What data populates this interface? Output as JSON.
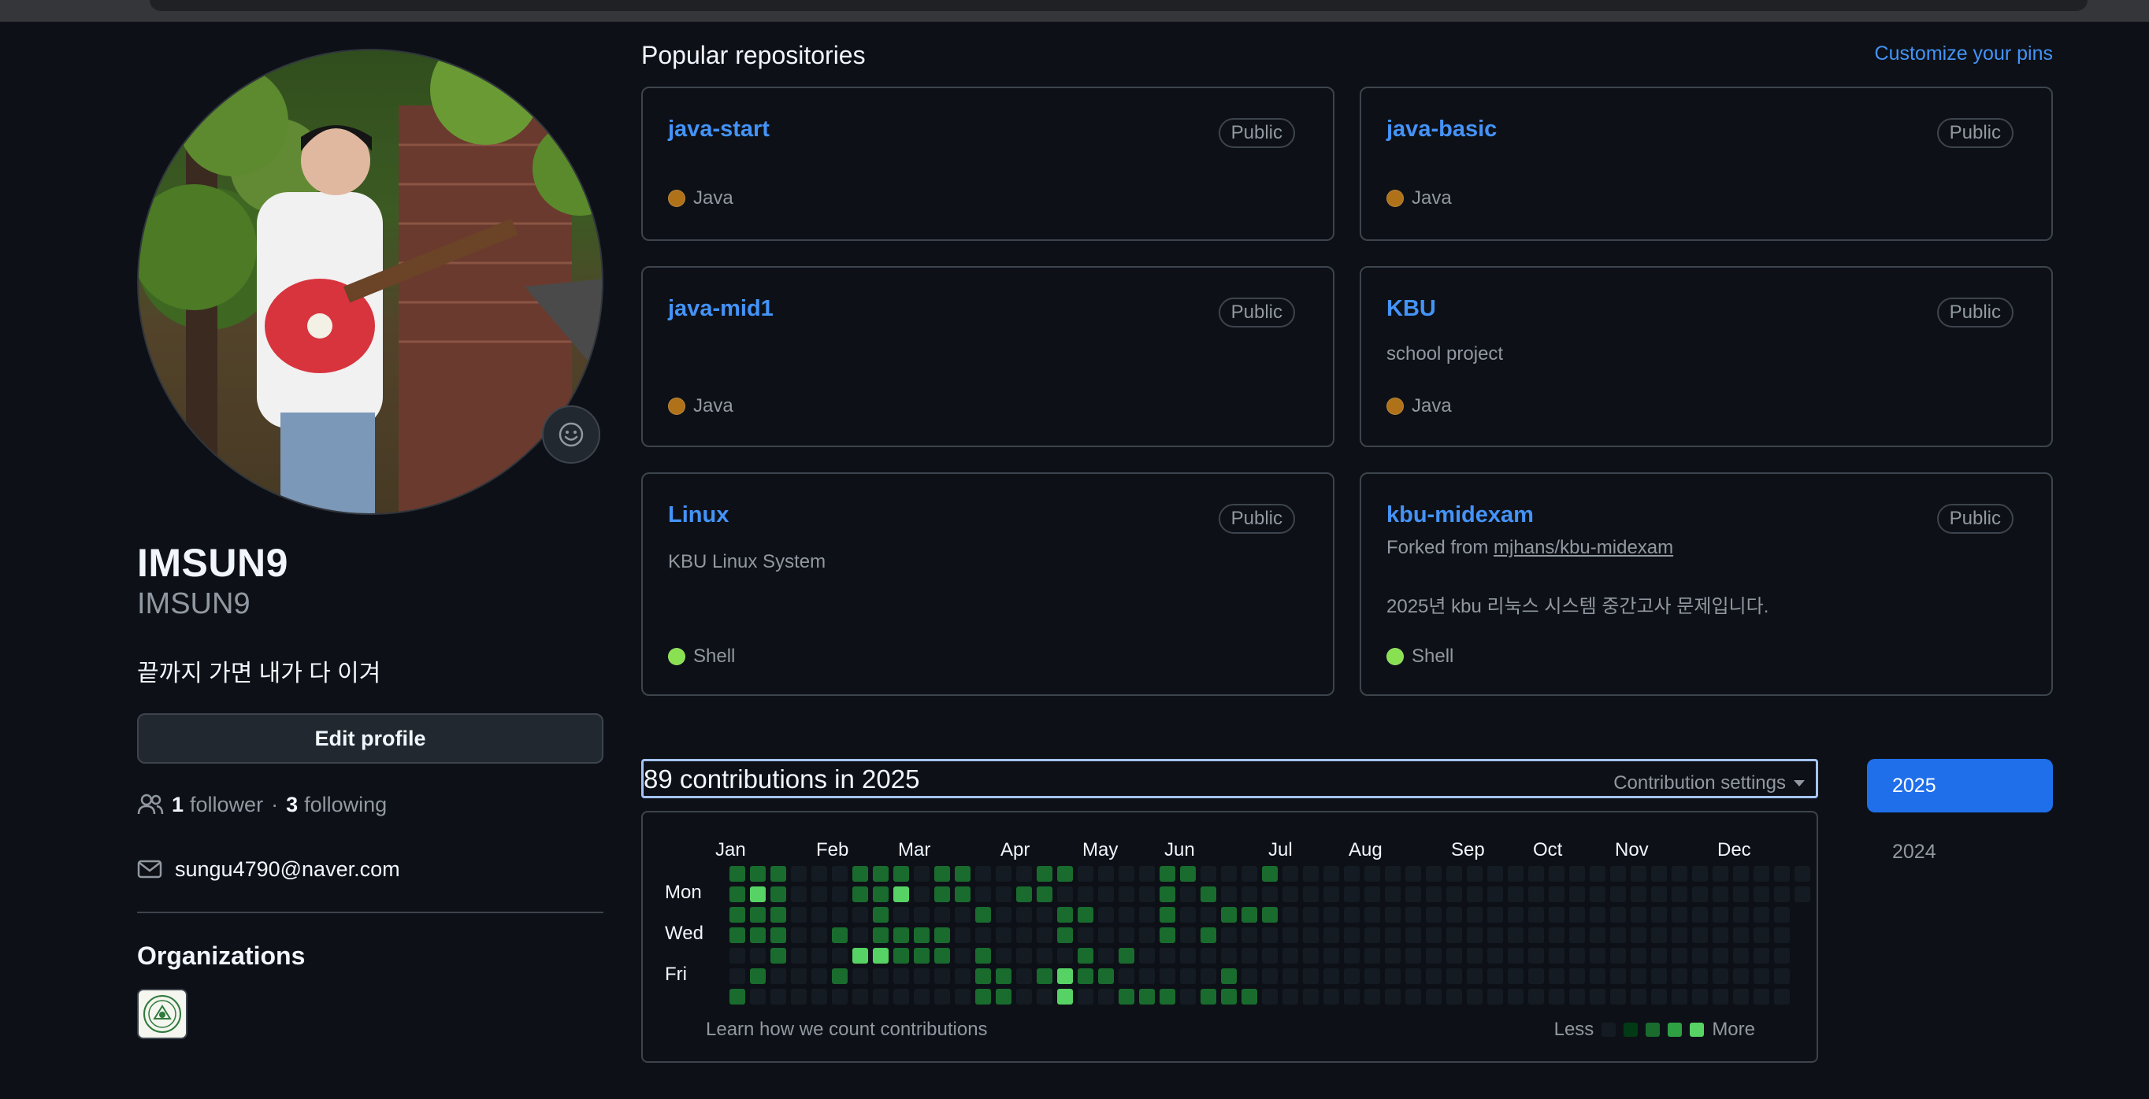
{
  "profile": {
    "display_name": "IMSUN9",
    "username": "IMSUN9",
    "bio": "끝까지 가면 내가 다 이겨",
    "edit_label": "Edit profile",
    "followers_count": "1",
    "followers_label": "follower",
    "following_count": "3",
    "following_label": "following",
    "separator": "·",
    "email": "sungu4790@naver.com",
    "orgs_title": "Organizations"
  },
  "pinned": {
    "title": "Popular repositories",
    "customize_label": "Customize your pins",
    "repos": [
      {
        "name": "java-start",
        "visibility": "Public",
        "description": "",
        "language": "Java",
        "language_color": "#b07219"
      },
      {
        "name": "java-basic",
        "visibility": "Public",
        "description": "",
        "language": "Java",
        "language_color": "#b07219"
      },
      {
        "name": "java-mid1",
        "visibility": "Public",
        "description": "",
        "language": "Java",
        "language_color": "#b07219"
      },
      {
        "name": "KBU",
        "visibility": "Public",
        "description": "school project",
        "language": "Java",
        "language_color": "#b07219"
      },
      {
        "name": "Linux",
        "visibility": "Public",
        "description": "KBU Linux System",
        "language": "Shell",
        "language_color": "#89e051"
      },
      {
        "name": "kbu-midexam",
        "visibility": "Public",
        "forked_prefix": "Forked from",
        "forked_from": "mjhans/kbu-midexam",
        "description": "2025년 kbu 리눅스 시스템 중간고사 문제입니다.",
        "language": "Shell",
        "language_color": "#89e051"
      }
    ]
  },
  "contributions": {
    "title": "89 contributions in 2025",
    "settings_label": "Contribution settings",
    "months": [
      "Jan",
      "Feb",
      "Mar",
      "Apr",
      "May",
      "Jun",
      "Jul",
      "Aug",
      "Sep",
      "Oct",
      "Nov",
      "Dec"
    ],
    "days": [
      "Mon",
      "Wed",
      "Fri"
    ],
    "learn_label": "Learn how we count contributions",
    "less_label": "Less",
    "more_label": "More",
    "level_colors": [
      "#151b23",
      "#033a16",
      "#196c2e",
      "#2ea043",
      "#56d364"
    ],
    "grid": [
      [
        null,
        null,
        null,
        null,
        null,
        null,
        null
      ],
      [
        2,
        2,
        2,
        2,
        0,
        0,
        2
      ],
      [
        2,
        4,
        2,
        2,
        0,
        2,
        0
      ],
      [
        2,
        2,
        2,
        2,
        2,
        0,
        0
      ],
      [
        0,
        0,
        0,
        0,
        0,
        0,
        0
      ],
      [
        0,
        0,
        0,
        0,
        0,
        0,
        0
      ],
      [
        0,
        0,
        0,
        2,
        0,
        2,
        0
      ],
      [
        2,
        2,
        0,
        0,
        4,
        0,
        0
      ],
      [
        2,
        2,
        2,
        2,
        4,
        0,
        0
      ],
      [
        2,
        4,
        0,
        2,
        2,
        0,
        0
      ],
      [
        0,
        0,
        0,
        2,
        2,
        0,
        0
      ],
      [
        2,
        2,
        0,
        2,
        2,
        0,
        0
      ],
      [
        2,
        2,
        0,
        0,
        0,
        0,
        0
      ],
      [
        0,
        0,
        2,
        0,
        2,
        2,
        2
      ],
      [
        0,
        0,
        0,
        0,
        0,
        2,
        2
      ],
      [
        0,
        2,
        0,
        0,
        0,
        0,
        0
      ],
      [
        2,
        2,
        0,
        0,
        0,
        2,
        0
      ],
      [
        2,
        0,
        2,
        2,
        0,
        4,
        4
      ],
      [
        0,
        0,
        2,
        0,
        2,
        2,
        0
      ],
      [
        0,
        0,
        0,
        0,
        0,
        2,
        0
      ],
      [
        0,
        0,
        0,
        0,
        2,
        0,
        2
      ],
      [
        0,
        0,
        0,
        0,
        0,
        0,
        2
      ],
      [
        2,
        2,
        2,
        2,
        0,
        0,
        2
      ],
      [
        2,
        0,
        0,
        0,
        0,
        0,
        0
      ],
      [
        0,
        2,
        0,
        2,
        0,
        0,
        2
      ],
      [
        0,
        0,
        2,
        0,
        0,
        2,
        2
      ],
      [
        0,
        0,
        2,
        0,
        0,
        0,
        2
      ],
      [
        2,
        0,
        2,
        0,
        0,
        0,
        0
      ],
      [
        0,
        0,
        0,
        0,
        0,
        0,
        0
      ],
      [
        0,
        0,
        0,
        0,
        0,
        0,
        0
      ],
      [
        0,
        0,
        0,
        0,
        0,
        0,
        0
      ],
      [
        0,
        0,
        0,
        0,
        0,
        0,
        0
      ],
      [
        0,
        0,
        0,
        0,
        0,
        0,
        0
      ],
      [
        0,
        0,
        0,
        0,
        0,
        0,
        0
      ],
      [
        0,
        0,
        0,
        0,
        0,
        0,
        0
      ],
      [
        0,
        0,
        0,
        0,
        0,
        0,
        0
      ],
      [
        0,
        0,
        0,
        0,
        0,
        0,
        0
      ],
      [
        0,
        0,
        0,
        0,
        0,
        0,
        0
      ],
      [
        0,
        0,
        0,
        0,
        0,
        0,
        0
      ],
      [
        0,
        0,
        0,
        0,
        0,
        0,
        0
      ],
      [
        0,
        0,
        0,
        0,
        0,
        0,
        0
      ],
      [
        0,
        0,
        0,
        0,
        0,
        0,
        0
      ],
      [
        0,
        0,
        0,
        0,
        0,
        0,
        0
      ],
      [
        0,
        0,
        0,
        0,
        0,
        0,
        0
      ],
      [
        0,
        0,
        0,
        0,
        0,
        0,
        0
      ],
      [
        0,
        0,
        0,
        0,
        0,
        0,
        0
      ],
      [
        0,
        0,
        0,
        0,
        0,
        0,
        0
      ],
      [
        0,
        0,
        0,
        0,
        0,
        0,
        0
      ],
      [
        0,
        0,
        0,
        0,
        0,
        0,
        0
      ],
      [
        0,
        0,
        0,
        0,
        0,
        0,
        0
      ],
      [
        0,
        0,
        0,
        0,
        0,
        0,
        0
      ],
      [
        0,
        0,
        0,
        0,
        0,
        0,
        0
      ],
      [
        0,
        0,
        0,
        0,
        0,
        0,
        0
      ],
      [
        0,
        0,
        null,
        null,
        null,
        null,
        null
      ]
    ]
  },
  "years": {
    "active": "2025",
    "other": "2024"
  },
  "icons": {
    "emoji": "smiley-icon",
    "people": "people-icon",
    "mail": "mail-icon"
  }
}
